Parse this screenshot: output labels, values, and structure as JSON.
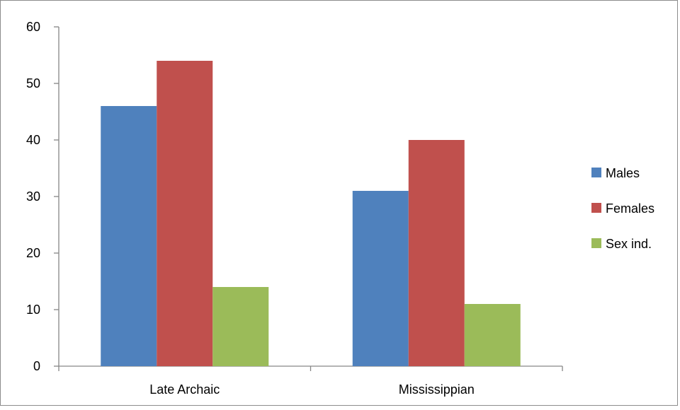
{
  "chart_data": {
    "type": "bar",
    "title": "",
    "xlabel": "",
    "ylabel": "",
    "categories": [
      "Late Archaic",
      "Mississippian"
    ],
    "series": [
      {
        "name": "Males",
        "values": [
          46,
          31
        ],
        "color": "#4f81bd"
      },
      {
        "name": "Females",
        "values": [
          54,
          40
        ],
        "color": "#c0504d"
      },
      {
        "name": "Sex ind.",
        "values": [
          14,
          11
        ],
        "color": "#9bbb59"
      }
    ],
    "ylim": [
      0,
      60
    ],
    "yticks": [
      0,
      10,
      20,
      30,
      40,
      50,
      60
    ],
    "grid": false,
    "legend_position": "right"
  }
}
